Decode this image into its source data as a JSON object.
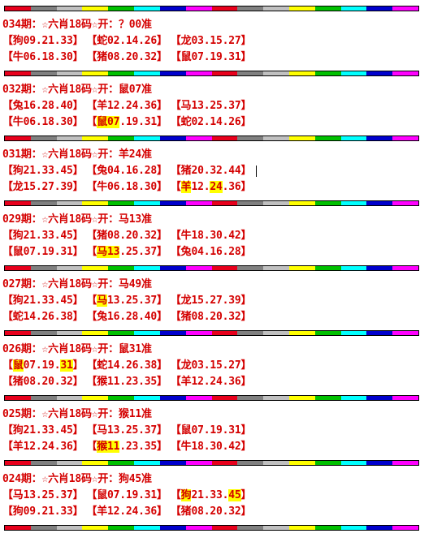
{
  "stripe_colors": [
    "#e8001c",
    "#808080",
    "#c0c0c0",
    "#ffff00",
    "#00c000",
    "#00ffff",
    "#0000cc",
    "#ff00ff",
    "#e8001c",
    "#808080",
    "#c0c0c0",
    "#ffff00",
    "#00c000",
    "#00ffff",
    "#0000cc",
    "#ff00ff"
  ],
  "entries": [
    {
      "title": "034期：☆六肖18码☆开：？00准",
      "rows": [
        [
          {
            "t": "【狗09.21.33】"
          },
          {
            "t": "【蛇02.14.26】"
          },
          {
            "t": "【龙03.15.27】"
          }
        ],
        [
          {
            "t": "【牛06.18.30】"
          },
          {
            "t": "【猪08.20.32】"
          },
          {
            "t": "【鼠07.19.31】"
          }
        ]
      ]
    },
    {
      "title": "032期：☆六肖18码☆开：鼠07准",
      "rows": [
        [
          {
            "t": "【兔16.28.40】"
          },
          {
            "t": "【羊12.24.36】"
          },
          {
            "t": "【马13.25.37】"
          }
        ],
        [
          {
            "t": "【牛06.18.30】"
          },
          {
            "pre": "【",
            "hl": "鼠07",
            "post": ".19.31】"
          },
          {
            "t": "【蛇02.14.26】"
          }
        ]
      ]
    },
    {
      "title": "031期：☆六肖18码☆开：羊24准",
      "rows": [
        [
          {
            "t": "【狗21.33.45】"
          },
          {
            "t": "【兔04.16.28】"
          },
          {
            "t": "【猪20.32.44】"
          }
        ],
        [
          {
            "t": "【龙15.27.39】"
          },
          {
            "t": "【牛06.18.30】"
          },
          {
            "pre": "【",
            "hl": "羊",
            "mid": "12.",
            "hl2": "24",
            "post": ".36】"
          }
        ]
      ]
    },
    {
      "title": "029期：☆六肖18码☆开：马13准",
      "rows": [
        [
          {
            "t": "【狗21.33.45】"
          },
          {
            "t": "【猪08.20.32】"
          },
          {
            "t": "【牛18.30.42】"
          }
        ],
        [
          {
            "t": "【鼠07.19.31】"
          },
          {
            "pre": "【",
            "hl": "马13",
            "post": ".25.37】"
          },
          {
            "t": "【兔04.16.28】"
          }
        ]
      ]
    },
    {
      "title": "027期：☆六肖18码☆开：马49准",
      "rows": [
        [
          {
            "t": "【狗21.33.45】"
          },
          {
            "pre": "【",
            "hl": "马",
            "post": "13.25.37】"
          },
          {
            "t": "【龙15.27.39】"
          }
        ],
        [
          {
            "t": "【蛇14.26.38】"
          },
          {
            "t": "【兔16.28.40】"
          },
          {
            "t": "【猪08.20.32】"
          }
        ]
      ]
    },
    {
      "title": "026期：☆六肖18码☆开：鼠31准",
      "rows": [
        [
          {
            "pre": "【",
            "hl": "鼠",
            "mid": "07.19.",
            "hl2": "31",
            "post": "】"
          },
          {
            "t": "【蛇14.26.38】"
          },
          {
            "t": "【龙03.15.27】"
          }
        ],
        [
          {
            "t": "【猪08.20.32】"
          },
          {
            "t": "【猴11.23.35】"
          },
          {
            "t": "【羊12.24.36】"
          }
        ]
      ]
    },
    {
      "title": "025期：☆六肖18码☆开：猴11准",
      "rows": [
        [
          {
            "t": "【狗21.33.45】"
          },
          {
            "t": "【马13.25.37】"
          },
          {
            "t": "【鼠07.19.31】"
          }
        ],
        [
          {
            "t": "【羊12.24.36】"
          },
          {
            "pre": "【",
            "hl": "猴11",
            "post": ".23.35】"
          },
          {
            "t": "【牛18.30.42】"
          }
        ]
      ]
    },
    {
      "title": "024期：☆六肖18码☆开：狗45准",
      "rows": [
        [
          {
            "t": "【马13.25.37】"
          },
          {
            "t": "【鼠07.19.31】"
          },
          {
            "pre": "【",
            "hl": "狗",
            "mid": "21.33.",
            "hl2": "45",
            "post": "】"
          }
        ],
        [
          {
            "t": "【狗09.21.33】"
          },
          {
            "t": "【羊12.24.36】"
          },
          {
            "t": "【猪08.20.32】"
          }
        ]
      ]
    }
  ]
}
